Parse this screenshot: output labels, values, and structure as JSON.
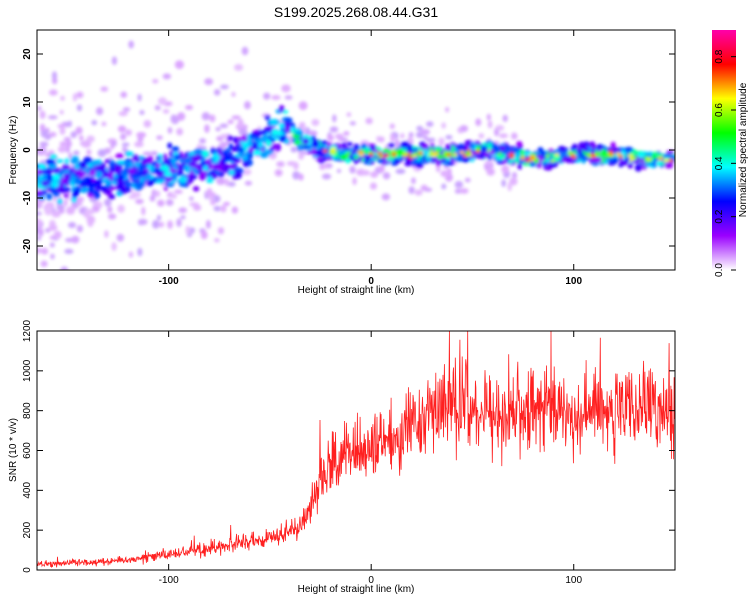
{
  "title": "S199.2025.268.08.44.G31",
  "chart_data": [
    {
      "type": "heatmap",
      "xlabel": "Height of straight line (km)",
      "ylabel": "Frequency (Hz)",
      "xlim": [
        -165,
        150
      ],
      "ylim": [
        -25,
        25
      ],
      "x_ticks": [
        -100,
        0,
        100
      ],
      "y_ticks": [
        -20,
        -10,
        0,
        10,
        20
      ],
      "colorbar": {
        "label": "Normalized spectral amplitude",
        "range": [
          0,
          0.9
        ],
        "ticks": [
          "0.0",
          "0.2",
          "0.4",
          "0.6",
          "0.8"
        ],
        "colors": [
          "#ffffff",
          "#9a00ff",
          "#0000ff",
          "#00ffff",
          "#00ff00",
          "#ffff00",
          "#ff0000",
          "#ff00aa"
        ]
      },
      "ridge": {
        "x": [
          -165,
          -140,
          -120,
          -100,
          -80,
          -60,
          -50,
          -42,
          -35,
          -25,
          -10,
          0,
          20,
          40,
          60,
          80,
          100,
          120,
          135,
          150
        ],
        "y": [
          -6,
          -6,
          -5,
          -4,
          -3,
          0,
          3,
          5,
          2,
          0,
          -1,
          -1,
          -1,
          -1,
          0,
          -2,
          -1,
          -1,
          -2,
          -2
        ]
      }
    },
    {
      "type": "line",
      "xlabel": "Height of straight line (km)",
      "ylabel": "SNR (10 * v/v)",
      "xlim": [
        -165,
        150
      ],
      "ylim": [
        0,
        1200
      ],
      "x_ticks": [
        -100,
        0,
        100
      ],
      "y_ticks": [
        0,
        200,
        400,
        600,
        800,
        1000,
        1200
      ],
      "series": [
        {
          "name": "SNR",
          "color": "#ff2020",
          "x": [
            -165,
            -140,
            -120,
            -100,
            -80,
            -60,
            -45,
            -35,
            -30,
            -25,
            -20,
            -10,
            0,
            10,
            20,
            30,
            40,
            50,
            60,
            70,
            80,
            90,
            100,
            110,
            120,
            130,
            140,
            150
          ],
          "y": [
            30,
            40,
            50,
            80,
            110,
            140,
            170,
            220,
            320,
            480,
            520,
            580,
            600,
            640,
            740,
            790,
            820,
            800,
            780,
            800,
            790,
            810,
            780,
            800,
            790,
            810,
            780,
            790
          ]
        }
      ]
    }
  ]
}
